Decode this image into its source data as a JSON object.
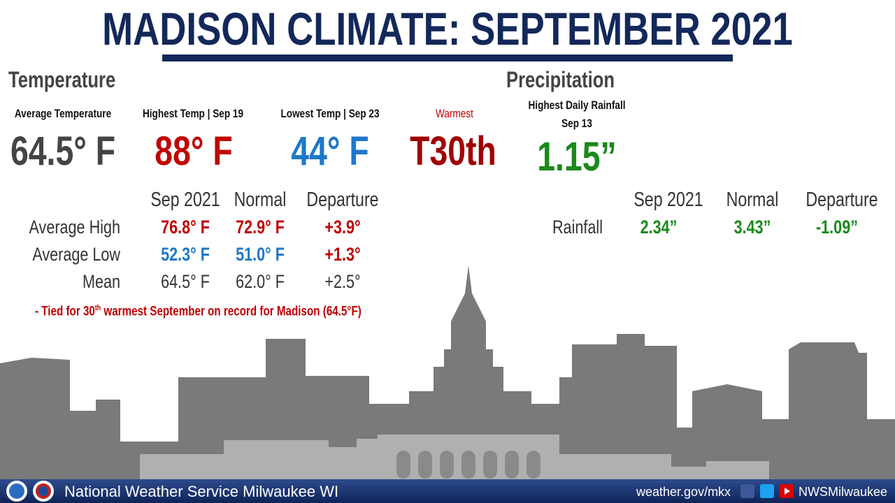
{
  "header": {
    "title": "MADISON CLIMATE: SEPTEMBER 2021"
  },
  "temperature": {
    "heading": "Temperature",
    "stats": [
      {
        "label": "Average Temperature",
        "value": "64.5° F"
      },
      {
        "label": "Highest Temp | Sep 19",
        "value": "88° F"
      },
      {
        "label": "Lowest Temp | Sep 23",
        "value": "44° F"
      },
      {
        "label": "Warmest",
        "value": "T30th"
      }
    ],
    "table": {
      "columns": [
        "Sep 2021",
        "Normal",
        "Departure"
      ],
      "rows": [
        [
          "Average High",
          "76.8° F",
          "72.9° F",
          "+3.9°"
        ],
        [
          "Average Low",
          "52.3° F",
          "51.0° F",
          "+1.3°"
        ],
        [
          "Mean",
          "64.5° F",
          "62.0° F",
          "+2.5°"
        ]
      ]
    },
    "note": {
      "before": "- Tied for 30",
      "sup": "th",
      "after": " warmest September on record for Madison (64.5°F)"
    }
  },
  "precipitation": {
    "heading": "Precipitation",
    "stat_label": "Highest Daily Rainfall",
    "stat_date": "Sep 13",
    "stat_value": "1.15”",
    "table": {
      "columns": [
        "Sep 2021",
        "Normal",
        "Departure"
      ],
      "rows": [
        [
          "Rainfall",
          "2.34”",
          "3.43”",
          "-1.09”"
        ]
      ]
    }
  },
  "footer": {
    "office": "National Weather Service Milwaukee WI",
    "website": "weather.gov/mkx",
    "handle": "NWSMilwaukee"
  }
}
